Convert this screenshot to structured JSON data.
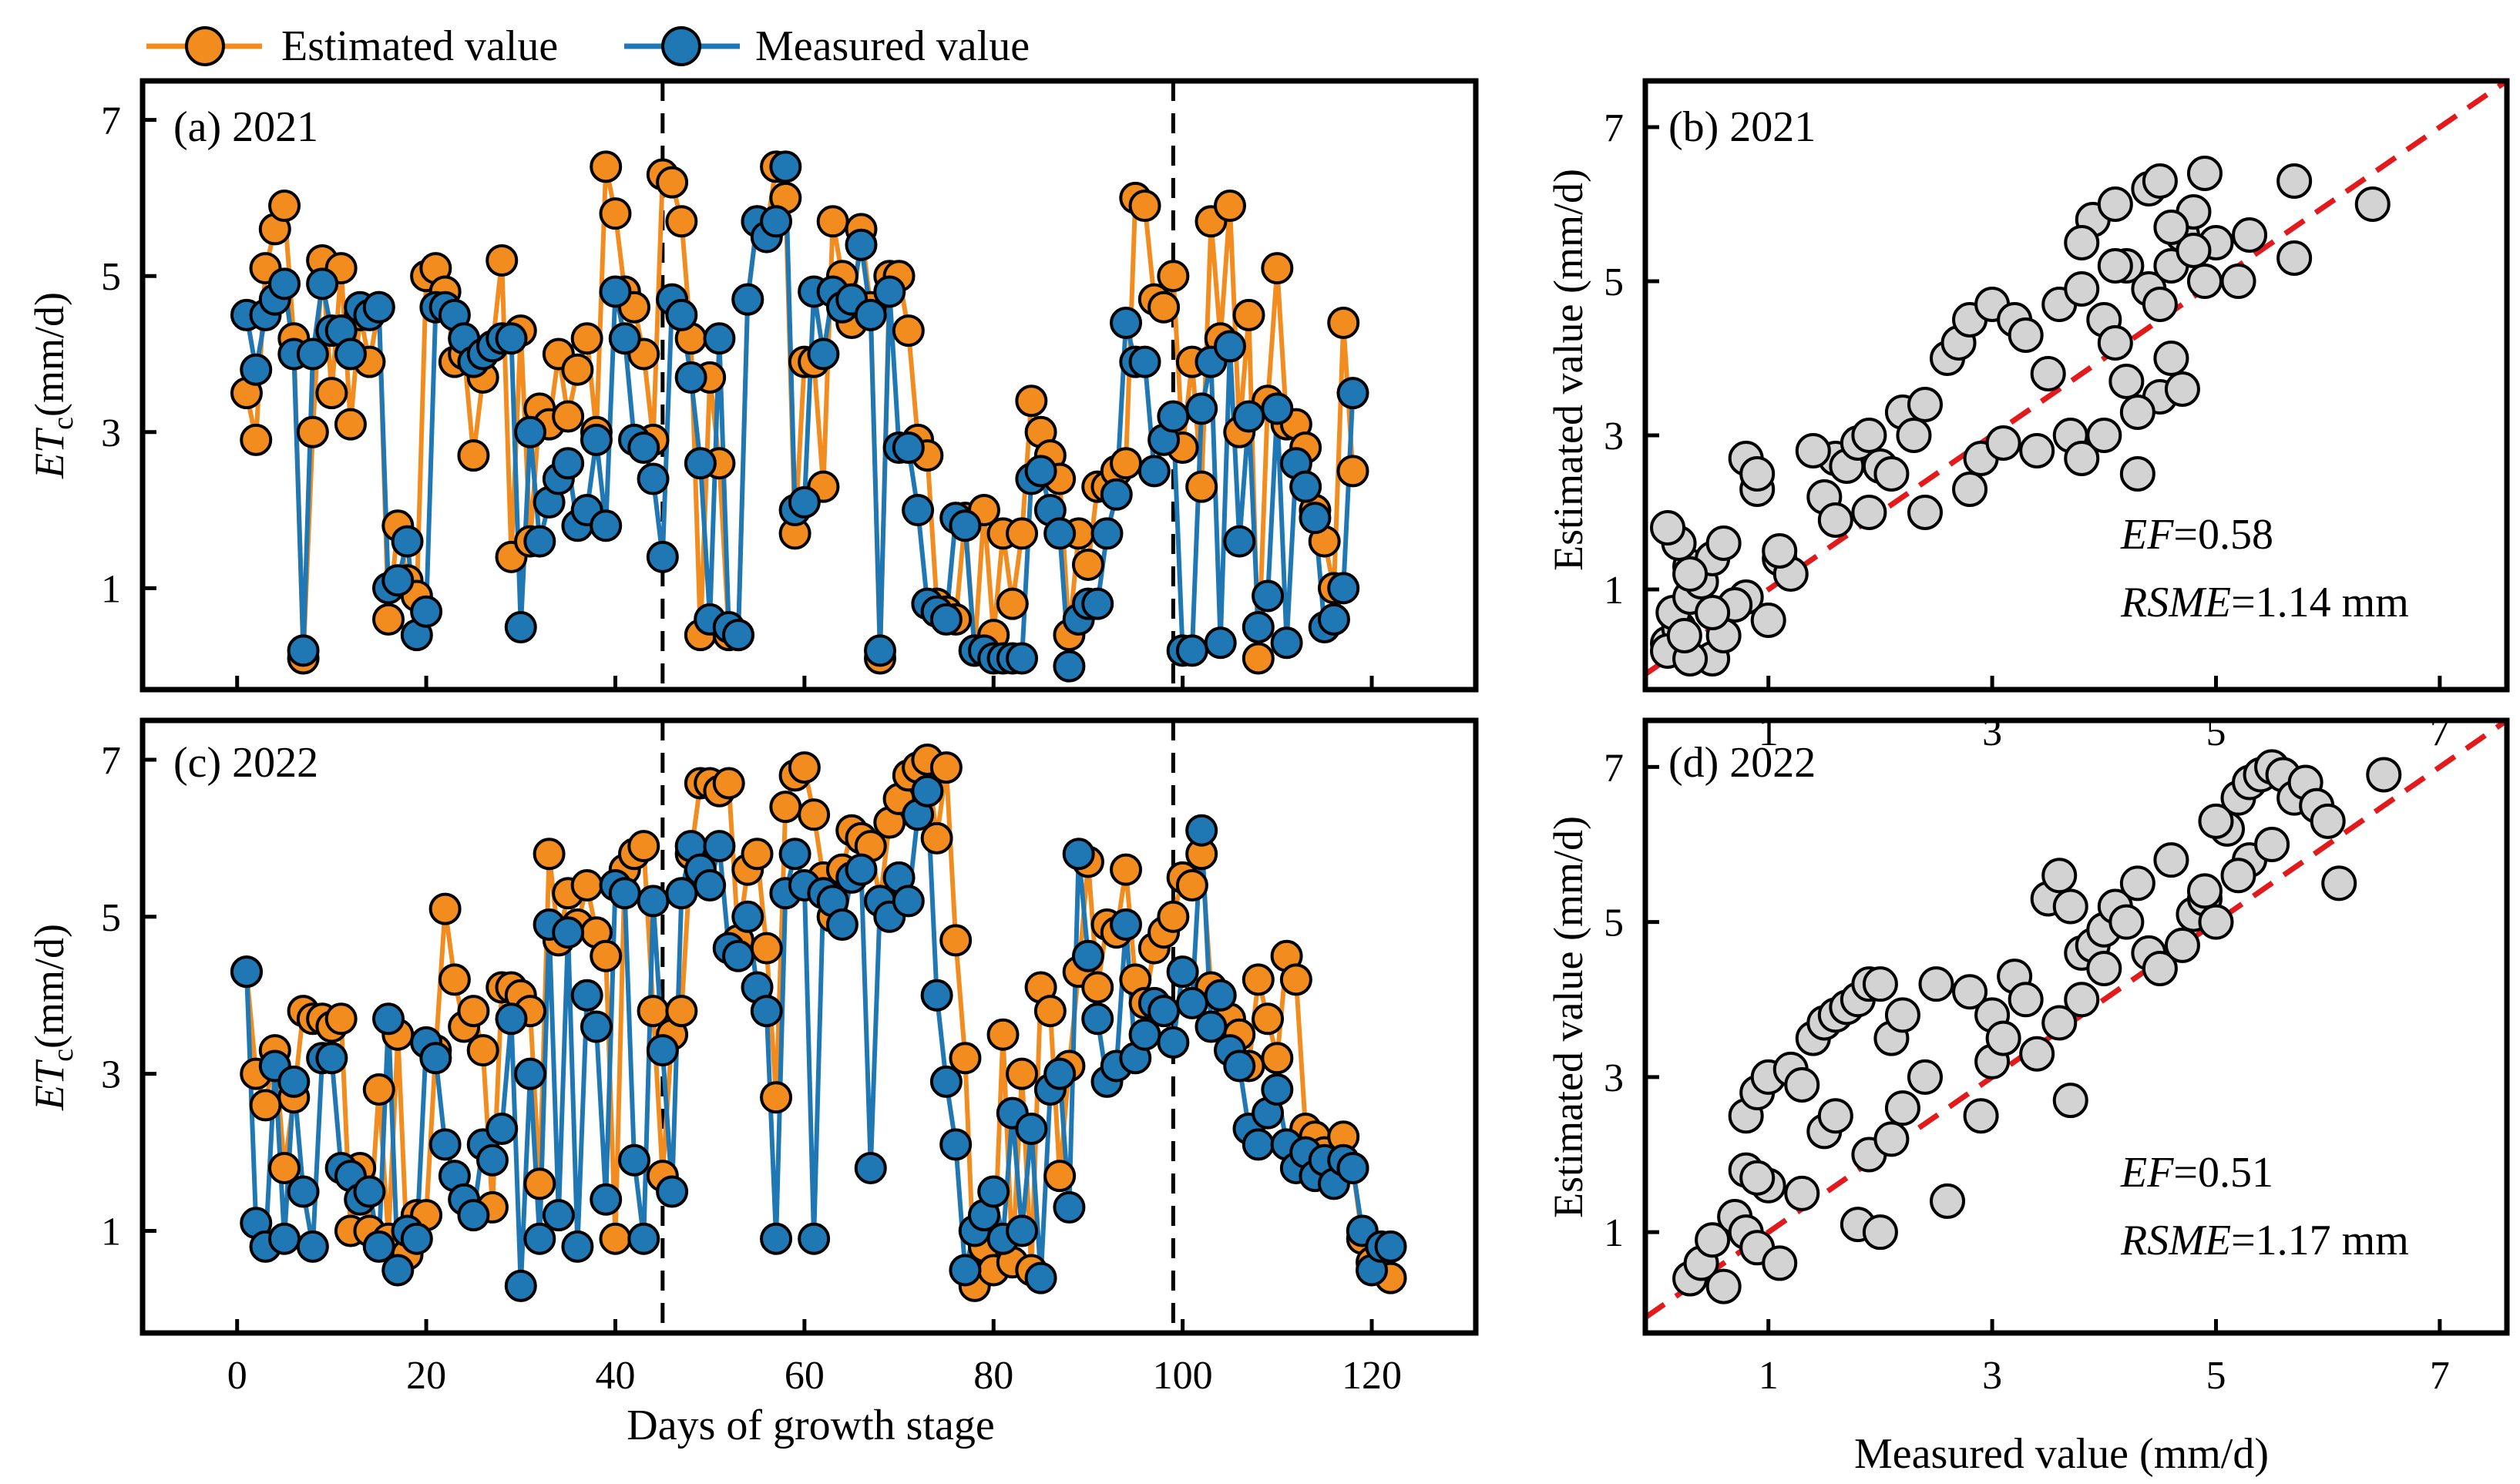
{
  "legend": {
    "items": [
      {
        "label": "Estimated value",
        "color": "#F28C1F"
      },
      {
        "label": "Measured value",
        "color": "#1F77B4"
      }
    ]
  },
  "colors": {
    "estimated": "#F28C1F",
    "measured": "#1F77B4",
    "scatter_fill": "#D3D3D3",
    "identity_line": "#E31A1C"
  },
  "chart_data": [
    {
      "id": "a",
      "type": "line",
      "panel_label": "(a) 2021",
      "ylabel_main": "ET",
      "ylabel_sub": "c",
      "ylabel_rest": "(mm/d)",
      "xlim": [
        -10,
        131
      ],
      "ylim": [
        -0.3,
        7.5
      ],
      "yticks": [
        1,
        3,
        5,
        7
      ],
      "stage_dividers": [
        45,
        99
      ],
      "x": [
        1,
        2,
        3,
        4,
        5,
        6,
        7,
        8,
        9,
        10,
        11,
        12,
        13,
        14,
        15,
        16,
        17,
        18,
        19,
        20,
        21,
        22,
        23,
        24,
        25,
        26,
        27,
        28,
        29,
        30,
        31,
        32,
        33,
        34,
        35,
        36,
        37,
        38,
        39,
        40,
        41,
        42,
        43,
        44,
        45,
        46,
        47,
        48,
        49,
        50,
        51,
        52,
        53,
        54,
        55,
        56,
        57,
        58,
        59,
        60,
        61,
        62,
        63,
        64,
        65,
        66,
        67,
        68,
        69,
        70,
        71,
        72,
        73,
        74,
        75,
        76,
        77,
        78,
        79,
        80,
        81,
        82,
        83,
        84,
        85,
        86,
        87,
        88,
        89,
        90,
        91,
        92,
        93,
        94,
        95,
        96,
        97,
        98,
        99,
        100,
        101,
        102,
        103,
        104,
        105,
        106,
        107,
        108,
        109,
        110,
        111,
        112,
        113,
        114,
        115,
        116,
        117,
        118
      ],
      "series": [
        {
          "name": "Estimated value",
          "values": [
            3.5,
            2.9,
            5.1,
            5.6,
            5.9,
            4.2,
            0.1,
            3.0,
            5.2,
            3.5,
            5.1,
            3.1,
            4.5,
            3.9,
            4.6,
            0.6,
            1.8,
            1.1,
            0.9,
            5.0,
            5.1,
            4.8,
            3.9,
            4.0,
            2.7,
            3.7,
            4.1,
            5.2,
            1.4,
            4.3,
            1.6,
            3.3,
            3.1,
            4.0,
            3.2,
            3.8,
            4.2,
            3.0,
            6.4,
            5.8,
            4.8,
            4.6,
            4.0,
            2.9,
            6.3,
            6.2,
            5.7,
            4.2,
            0.4,
            3.7,
            2.6,
            0.4,
            0.4,
            4.7,
            5.7,
            5.6,
            6.4,
            6.0,
            1.7,
            3.9,
            3.9,
            2.3,
            5.7,
            5.0,
            4.4,
            5.6,
            4.6,
            0.1,
            5.0,
            5.0,
            4.3,
            2.9,
            2.7,
            0.8,
            0.7,
            0.6,
            1.9,
            0.2,
            2.0,
            0.4,
            1.7,
            0.8,
            1.7,
            3.4,
            3.0,
            2.7,
            2.4,
            0.4,
            1.7,
            1.3,
            2.3,
            2.3,
            2.5,
            2.6,
            6.0,
            5.9,
            4.7,
            4.6,
            5.0,
            2.8,
            3.9,
            2.3,
            5.7,
            4.2,
            5.9,
            3.0,
            4.5,
            0.1,
            3.4,
            5.1,
            3.1,
            3.1,
            2.8,
            2.0,
            1.6,
            1.0,
            4.4,
            2.5
          ]
        },
        {
          "name": "Measured value",
          "values": [
            4.5,
            3.8,
            4.5,
            4.7,
            4.9,
            4.0,
            0.2,
            4.0,
            4.9,
            4.3,
            4.3,
            4.0,
            4.6,
            4.5,
            4.6,
            1.0,
            1.1,
            1.6,
            0.4,
            0.7,
            4.6,
            4.6,
            4.5,
            4.2,
            3.9,
            4.0,
            4.1,
            4.2,
            4.2,
            0.5,
            3.0,
            1.6,
            2.1,
            2.4,
            2.6,
            1.8,
            2.0,
            2.9,
            1.8,
            4.8,
            4.2,
            2.9,
            2.8,
            2.4,
            1.4,
            4.7,
            4.5,
            3.7,
            2.6,
            0.6,
            4.2,
            0.5,
            0.4,
            4.7,
            5.7,
            5.5,
            5.7,
            6.4,
            2.0,
            2.1,
            4.8,
            4.0,
            4.8,
            4.6,
            4.7,
            5.4,
            4.5,
            0.2,
            4.8,
            2.8,
            2.8,
            2.0,
            0.8,
            0.7,
            0.6,
            1.9,
            1.8,
            0.2,
            0.2,
            0.1,
            0.1,
            0.1,
            0.1,
            2.4,
            2.5,
            2.0,
            1.7,
            0.0,
            0.6,
            0.8,
            0.8,
            1.7,
            2.2,
            4.4,
            3.9,
            3.9,
            2.5,
            2.9,
            3.2,
            0.2,
            0.2,
            3.3,
            3.9,
            0.3,
            4.1,
            1.6,
            3.2,
            0.5,
            0.9,
            3.3,
            0.3,
            2.6,
            2.3,
            1.9,
            0.5,
            0.6,
            1.0,
            3.5
          ]
        }
      ]
    },
    {
      "id": "c",
      "type": "line",
      "panel_label": "(c) 2022",
      "ylabel_main": "ET",
      "ylabel_sub": "c",
      "ylabel_rest": "(mm/d)",
      "xlim": [
        -10,
        131
      ],
      "ylim": [
        -0.3,
        7.5
      ],
      "yticks": [
        1,
        3,
        5,
        7
      ],
      "xticks": [
        0,
        20,
        40,
        60,
        80,
        100,
        120
      ],
      "xlabel": "Days of growth stage",
      "stage_dividers": [
        45,
        99
      ],
      "x": [
        1,
        2,
        3,
        4,
        5,
        6,
        7,
        8,
        9,
        10,
        11,
        12,
        13,
        14,
        15,
        16,
        17,
        18,
        19,
        20,
        21,
        22,
        23,
        24,
        25,
        26,
        27,
        28,
        29,
        30,
        31,
        32,
        33,
        34,
        35,
        36,
        37,
        38,
        39,
        40,
        41,
        42,
        43,
        44,
        45,
        46,
        47,
        48,
        49,
        50,
        51,
        52,
        53,
        54,
        55,
        56,
        57,
        58,
        59,
        60,
        61,
        62,
        63,
        64,
        65,
        66,
        67,
        68,
        69,
        70,
        71,
        72,
        73,
        74,
        75,
        76,
        77,
        78,
        79,
        80,
        81,
        82,
        83,
        84,
        85,
        86,
        87,
        88,
        89,
        90,
        91,
        92,
        93,
        94,
        95,
        96,
        97,
        98,
        99,
        100,
        101,
        102,
        103,
        104,
        105,
        106,
        107,
        108,
        109,
        110,
        111,
        112,
        113,
        114,
        115,
        116,
        117,
        118,
        119,
        120,
        121,
        122
      ],
      "series": [
        {
          "name": "Estimated value",
          "values": [
            4.3,
            3.0,
            2.6,
            3.3,
            1.8,
            2.7,
            3.8,
            3.7,
            3.7,
            3.6,
            3.7,
            1.0,
            1.8,
            1.0,
            2.8,
            0.9,
            3.5,
            0.7,
            1.2,
            1.2,
            3.3,
            5.1,
            4.2,
            3.6,
            3.8,
            3.3,
            1.3,
            4.1,
            4.1,
            4.0,
            3.8,
            1.6,
            5.8,
            4.7,
            5.3,
            4.9,
            5.4,
            4.8,
            4.5,
            0.9,
            5.6,
            5.8,
            5.9,
            3.8,
            1.7,
            3.5,
            3.8,
            5.8,
            6.7,
            6.7,
            6.6,
            6.7,
            4.7,
            5.6,
            5.8,
            4.6,
            2.7,
            6.4,
            6.8,
            6.9,
            6.3,
            5.5,
            5.0,
            5.6,
            6.1,
            6.0,
            5.9,
            5.2,
            6.2,
            6.5,
            6.8,
            6.9,
            7.0,
            6.0,
            6.9,
            4.7,
            3.2,
            0.3,
            0.8,
            0.5,
            3.5,
            0.6,
            3.0,
            0.5,
            4.1,
            3.8,
            1.7,
            3.1,
            4.3,
            5.7,
            4.1,
            4.9,
            4.8,
            5.6,
            4.2,
            3.9,
            4.6,
            4.8,
            5.0,
            5.5,
            5.4,
            5.8,
            4.1,
            3.6,
            3.7,
            3.5,
            3.1,
            4.2,
            3.7,
            3.2,
            4.5,
            4.2,
            2.3,
            2.2,
            2.0,
            1.8,
            2.2,
            1.8,
            0.9,
            0.6,
            0.5,
            0.4
          ]
        },
        {
          "name": "Measured value",
          "values": [
            4.3,
            1.1,
            0.8,
            3.1,
            0.9,
            2.9,
            1.5,
            0.8,
            3.2,
            3.2,
            1.8,
            1.7,
            1.4,
            1.5,
            0.8,
            3.7,
            0.5,
            1.0,
            0.9,
            3.4,
            3.2,
            2.1,
            1.7,
            1.4,
            1.2,
            2.1,
            1.9,
            2.3,
            3.7,
            0.3,
            3.0,
            0.9,
            4.9,
            1.2,
            4.8,
            0.8,
            4.0,
            3.6,
            1.4,
            5.4,
            5.3,
            1.9,
            0.9,
            5.2,
            3.3,
            1.5,
            5.3,
            5.9,
            5.6,
            5.4,
            5.9,
            4.6,
            4.5,
            5.0,
            4.1,
            3.8,
            0.9,
            5.3,
            5.8,
            5.4,
            0.9,
            5.3,
            5.2,
            4.9,
            5.5,
            5.6,
            1.8,
            5.2,
            5.0,
            5.5,
            5.2,
            6.3,
            6.6,
            4.0,
            2.9,
            2.1,
            0.5,
            1.0,
            1.2,
            1.5,
            0.9,
            2.5,
            1.0,
            2.3,
            0.4,
            2.8,
            3.0,
            1.3,
            5.8,
            4.5,
            3.7,
            2.9,
            3.1,
            4.9,
            3.2,
            3.5,
            3.9,
            3.8,
            3.4,
            4.3,
            3.9,
            6.1,
            3.6,
            4.0,
            3.3,
            3.1,
            2.3,
            2.1,
            2.5,
            2.8,
            2.1,
            1.8,
            2.0,
            1.7,
            1.9,
            1.6,
            1.9,
            1.8,
            1.0,
            0.5,
            0.8,
            0.8
          ]
        }
      ]
    },
    {
      "id": "b",
      "type": "scatter",
      "panel_label": "(b) 2021",
      "ylabel": "Estimated value (mm/d)",
      "xlim": [
        -0.1,
        7.6
      ],
      "ylim": [
        -0.3,
        7.6
      ],
      "xticks": [
        1,
        3,
        5,
        7
      ],
      "yticks": [
        1,
        3,
        5,
        7
      ],
      "stat_ef_label": "EF",
      "stat_ef_value": "=0.58",
      "stat_rmse_label": "RSME",
      "stat_rmse_value": "=1.14 mm",
      "x": [
        0.1,
        0.2,
        0.15,
        0.3,
        0.4,
        0.3,
        0.5,
        0.6,
        0.8,
        0.7,
        0.2,
        0.1,
        0.3,
        1.0,
        1.1,
        1.2,
        0.5,
        0.6,
        0.9,
        0.1,
        0.8,
        0.9,
        1.6,
        1.7,
        1.8,
        2.0,
        1.5,
        1.4,
        1.9,
        2.2,
        2.4,
        2.3,
        2.6,
        2.7,
        2.8,
        3.0,
        3.2,
        3.3,
        3.6,
        3.9,
        3.8,
        4.1,
        4.4,
        4.5,
        4.7,
        4.8,
        4.9,
        4.2,
        4.4,
        4.0,
        4.6,
        3.7,
        3.8,
        4.2,
        4.5,
        5.0,
        5.2,
        5.7,
        6.4,
        4.0,
        4.3,
        3.5,
        4.1,
        4.6,
        4.8,
        4.7,
        4.3,
        2.4,
        2.8,
        2.9,
        3.1,
        3.4,
        1.1,
        1.6,
        1.9,
        2.1,
        0.5,
        0.3,
        0.25,
        4.9,
        4.6,
        5.3,
        5.7,
        4.1,
        3.8,
        4.5
      ],
      "y": [
        0.3,
        0.5,
        0.7,
        0.9,
        1.1,
        1.3,
        1.4,
        1.6,
        0.9,
        0.8,
        1.6,
        1.8,
        1.2,
        0.6,
        1.4,
        1.2,
        0.1,
        0.4,
        2.3,
        0.2,
        2.7,
        2.5,
        2.7,
        2.6,
        2.9,
        2.6,
        2.2,
        2.8,
        3.0,
        3.3,
        3.4,
        3.0,
        4.0,
        4.2,
        4.5,
        4.7,
        4.5,
        4.3,
        4.7,
        5.8,
        5.5,
        6.0,
        6.2,
        6.3,
        5.6,
        5.9,
        5.0,
        5.2,
        4.9,
        4.5,
        4.0,
        3.0,
        2.7,
        3.7,
        3.5,
        5.5,
        5.0,
        5.3,
        6.0,
        3.0,
        3.3,
        3.8,
        4.2,
        5.2,
        5.4,
        3.6,
        2.5,
        2.0,
        2.3,
        2.7,
        2.9,
        2.8,
        1.5,
        1.9,
        2.0,
        2.5,
        0.7,
        0.1,
        0.4,
        6.4,
        5.7,
        5.6,
        6.3,
        5.2,
        4.9,
        4.7
      ]
    },
    {
      "id": "d",
      "type": "scatter",
      "panel_label": "(d) 2022",
      "ylabel": "Estimated value (mm/d)",
      "xlabel": "Measured value (mm/d)",
      "xlim": [
        -0.1,
        7.6
      ],
      "ylim": [
        -0.3,
        7.6
      ],
      "xticks": [
        1,
        3,
        5,
        7
      ],
      "yticks": [
        1,
        3,
        5,
        7
      ],
      "stat_ef_label": "EF",
      "stat_ef_value": "=0.51",
      "stat_rmse_label": "RSME",
      "stat_rmse_value": "=1.17 mm",
      "x": [
        0.3,
        0.4,
        0.5,
        0.6,
        0.7,
        0.8,
        0.9,
        1.0,
        1.1,
        0.8,
        0.9,
        1.0,
        1.2,
        1.3,
        1.4,
        1.5,
        1.6,
        1.7,
        1.8,
        1.9,
        2.0,
        2.1,
        2.2,
        1.5,
        1.6,
        1.9,
        2.1,
        2.2,
        2.4,
        2.5,
        2.8,
        3.0,
        3.2,
        3.3,
        3.5,
        3.6,
        3.7,
        3.8,
        3.9,
        4.0,
        4.1,
        4.2,
        4.3,
        4.4,
        4.5,
        4.6,
        4.7,
        4.8,
        4.9,
        5.0,
        5.1,
        5.2,
        5.3,
        5.4,
        5.5,
        5.6,
        5.7,
        5.8,
        5.9,
        6.0,
        6.1,
        6.5,
        5.3,
        5.5,
        5.0,
        4.9,
        5.2,
        3.0,
        3.1,
        3.4,
        3.7,
        2.9,
        2.6,
        0.8,
        0.9,
        1.3,
        1.8,
        2.0,
        3.6,
        3.8,
        4.0
      ],
      "y": [
        0.4,
        0.6,
        0.9,
        0.3,
        1.2,
        1.0,
        0.8,
        1.6,
        0.6,
        2.5,
        2.8,
        3.0,
        3.1,
        2.9,
        3.5,
        3.7,
        3.8,
        3.9,
        4.0,
        4.2,
        4.2,
        3.5,
        3.8,
        2.3,
        2.5,
        2.0,
        2.2,
        2.6,
        3.0,
        4.2,
        4.1,
        3.8,
        4.3,
        4.0,
        5.3,
        5.6,
        5.2,
        4.6,
        4.7,
        4.9,
        5.2,
        5.0,
        5.5,
        4.6,
        4.4,
        5.8,
        4.7,
        5.1,
        5.3,
        5.0,
        6.2,
        6.6,
        6.8,
        6.9,
        7.0,
        6.9,
        6.6,
        6.8,
        6.5,
        6.3,
        5.5,
        6.9,
        5.8,
        6.0,
        6.3,
        5.4,
        5.6,
        3.2,
        3.5,
        3.3,
        2.7,
        2.5,
        1.4,
        1.8,
        1.7,
        1.5,
        1.1,
        1.0,
        3.7,
        4.0,
        4.4
      ]
    }
  ]
}
